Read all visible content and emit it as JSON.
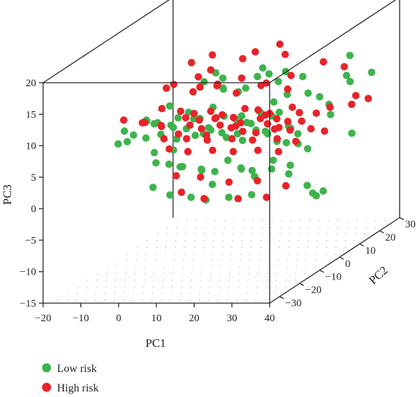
{
  "chart_data": {
    "type": "scatter",
    "projection": "3d",
    "xlabel": "PC1",
    "ylabel": "PC2",
    "zlabel": "PC3",
    "xlim": [
      -20,
      40
    ],
    "ylim": [
      -35,
      30
    ],
    "zlim": [
      -15,
      20
    ],
    "xticks": [
      "−20",
      "−10",
      "0",
      "10",
      "20",
      "30",
      "40"
    ],
    "yticks": [
      "−30",
      "−20",
      "−10",
      "0",
      "10",
      "20",
      "30"
    ],
    "zticks": [
      "−15",
      "−10",
      "−5",
      "0",
      "5",
      "10",
      "15",
      "20"
    ],
    "floor_grid": true,
    "legend_position": "bottom-left",
    "series": [
      {
        "name": "Low risk",
        "color": "#3cb44b",
        "points": [
          [
            27,
            28,
            8
          ],
          [
            30,
            24,
            12
          ],
          [
            40,
            16,
            11
          ],
          [
            39,
            8,
            3
          ],
          [
            -17,
            0,
            5
          ],
          [
            -16,
            -5,
            4
          ],
          [
            -13,
            -3,
            5
          ],
          [
            -12,
            -8,
            5
          ],
          [
            -10,
            -2,
            7
          ],
          [
            -8,
            -6,
            8
          ],
          [
            -7,
            -4,
            7
          ],
          [
            -6,
            -10,
            6
          ],
          [
            -5,
            0,
            9
          ],
          [
            -4,
            -8,
            8
          ],
          [
            -3,
            -2,
            6
          ],
          [
            -2,
            -5,
            7
          ],
          [
            -1,
            -12,
            7
          ],
          [
            0,
            0,
            8
          ],
          [
            0,
            -6,
            5
          ],
          [
            1,
            -3,
            6
          ],
          [
            2,
            -9,
            9
          ],
          [
            3,
            0,
            7
          ],
          [
            4,
            -5,
            8
          ],
          [
            5,
            -2,
            5
          ],
          [
            6,
            -8,
            6
          ],
          [
            7,
            -1,
            9
          ],
          [
            8,
            -4,
            6
          ],
          [
            9,
            -7,
            7
          ],
          [
            10,
            0,
            4
          ],
          [
            11,
            -3,
            8
          ],
          [
            12,
            -6,
            6
          ],
          [
            13,
            2,
            7
          ],
          [
            14,
            -2,
            5
          ],
          [
            15,
            -5,
            8
          ],
          [
            16,
            1,
            6
          ],
          [
            17,
            -3,
            7
          ],
          [
            18,
            -7,
            5
          ],
          [
            19,
            0,
            8
          ],
          [
            20,
            -4,
            6
          ],
          [
            21,
            2,
            7
          ],
          [
            22,
            -2,
            5
          ],
          [
            23,
            -5,
            6
          ],
          [
            24,
            0,
            8
          ],
          [
            25,
            -3,
            4
          ],
          [
            26,
            2,
            5
          ],
          [
            27,
            -1,
            6
          ],
          [
            28,
            -4,
            4
          ],
          [
            29,
            0,
            3
          ],
          [
            30,
            -2,
            5
          ],
          [
            31,
            1,
            2
          ],
          [
            -8,
            -2,
            2
          ],
          [
            -6,
            -5,
            1
          ],
          [
            -4,
            0,
            2
          ],
          [
            -2,
            -6,
            1
          ],
          [
            0,
            -3,
            0
          ],
          [
            2,
            -8,
            1
          ],
          [
            4,
            -1,
            -1
          ],
          [
            6,
            -5,
            0
          ],
          [
            8,
            -2,
            -1
          ],
          [
            10,
            -7,
            -2
          ],
          [
            12,
            -3,
            1
          ],
          [
            14,
            0,
            -1
          ],
          [
            16,
            -4,
            0
          ],
          [
            18,
            -1,
            -2
          ],
          [
            20,
            -6,
            0
          ],
          [
            22,
            0,
            -1
          ],
          [
            24,
            -3,
            1
          ],
          [
            26,
            1,
            -2
          ],
          [
            28,
            -2,
            0
          ],
          [
            33,
            -3,
            -3
          ],
          [
            -2,
            -14,
            -1
          ],
          [
            3,
            -15,
            -2
          ],
          [
            7,
            -12,
            -3
          ],
          [
            12,
            -14,
            -3
          ],
          [
            17,
            -12,
            -3
          ],
          [
            22,
            -10,
            -3
          ],
          [
            35,
            -4,
            -4
          ],
          [
            37,
            -6,
            -4
          ],
          [
            42,
            -12,
            -2
          ],
          [
            4,
            6,
            13
          ],
          [
            7,
            4,
            11
          ],
          [
            10,
            6,
            10
          ],
          [
            14,
            8,
            12
          ],
          [
            17,
            5,
            14
          ],
          [
            19,
            9,
            11
          ],
          [
            22,
            7,
            13
          ],
          [
            24,
            4,
            10
          ],
          [
            26,
            8,
            12
          ],
          [
            29,
            5,
            10
          ],
          [
            31,
            7,
            9
          ],
          [
            34,
            6,
            8
          ],
          [
            36,
            3,
            7
          ],
          [
            38,
            9,
            11
          ],
          [
            2,
            4,
            12
          ],
          [
            5,
            8,
            10
          ],
          [
            8,
            2,
            13
          ],
          [
            13,
            4,
            11
          ],
          [
            16,
            10,
            12
          ],
          [
            21,
            3,
            9
          ]
        ]
      },
      {
        "name": "High risk",
        "color": "#e8232a",
        "points": [
          [
            30,
            27,
            5
          ],
          [
            19,
            28,
            2
          ],
          [
            37,
            20,
            6
          ],
          [
            40,
            6,
            8
          ],
          [
            38,
            -1,
            9
          ],
          [
            28,
            25,
            10
          ],
          [
            23,
            24,
            11
          ],
          [
            12,
            23,
            14
          ],
          [
            6,
            22,
            13
          ],
          [
            15,
            20,
            13
          ],
          [
            -14,
            -6,
            8
          ],
          [
            -10,
            -3,
            7
          ],
          [
            -8,
            -8,
            8
          ],
          [
            -6,
            -2,
            9
          ],
          [
            -4,
            -6,
            7
          ],
          [
            -2,
            -10,
            8
          ],
          [
            0,
            -4,
            9
          ],
          [
            1,
            -7,
            6
          ],
          [
            2,
            -1,
            8
          ],
          [
            3,
            -5,
            7
          ],
          [
            4,
            -9,
            9
          ],
          [
            5,
            -3,
            6
          ],
          [
            6,
            -6,
            8
          ],
          [
            7,
            0,
            7
          ],
          [
            8,
            -4,
            9
          ],
          [
            9,
            -8,
            6
          ],
          [
            10,
            -2,
            8
          ],
          [
            11,
            -5,
            7
          ],
          [
            12,
            -9,
            9
          ],
          [
            13,
            -1,
            6
          ],
          [
            14,
            -4,
            8
          ],
          [
            15,
            -7,
            7
          ],
          [
            16,
            -2,
            9
          ],
          [
            17,
            -5,
            6
          ],
          [
            18,
            -8,
            8
          ],
          [
            19,
            0,
            7
          ],
          [
            20,
            -3,
            9
          ],
          [
            21,
            -6,
            6
          ],
          [
            22,
            -1,
            8
          ],
          [
            23,
            -4,
            7
          ],
          [
            24,
            -7,
            9
          ],
          [
            25,
            -2,
            6
          ],
          [
            26,
            -5,
            8
          ],
          [
            27,
            -8,
            7
          ],
          [
            28,
            -1,
            9
          ],
          [
            29,
            -4,
            6
          ],
          [
            30,
            -7,
            8
          ],
          [
            31,
            -2,
            7
          ],
          [
            32,
            -5,
            9
          ],
          [
            34,
            -3,
            6
          ],
          [
            -8,
            4,
            11
          ],
          [
            -5,
            2,
            12
          ],
          [
            -2,
            6,
            10
          ],
          [
            1,
            3,
            13
          ],
          [
            4,
            7,
            11
          ],
          [
            7,
            1,
            12
          ],
          [
            10,
            5,
            10
          ],
          [
            13,
            2,
            13
          ],
          [
            16,
            6,
            11
          ],
          [
            19,
            3,
            12
          ],
          [
            22,
            8,
            10
          ],
          [
            25,
            4,
            13
          ],
          [
            -6,
            -1,
            4
          ],
          [
            -3,
            -4,
            3
          ],
          [
            0,
            -1,
            4
          ],
          [
            3,
            -6,
            3
          ],
          [
            6,
            -2,
            4
          ],
          [
            9,
            -5,
            3
          ],
          [
            12,
            -1,
            4
          ],
          [
            15,
            -6,
            3
          ],
          [
            18,
            -2,
            4
          ],
          [
            21,
            -5,
            3
          ],
          [
            24,
            -1,
            4
          ],
          [
            27,
            -6,
            3
          ],
          [
            30,
            -3,
            4
          ],
          [
            2,
            -10,
            0
          ],
          [
            9,
            -11,
            0
          ],
          [
            16,
            -10,
            -1
          ],
          [
            23,
            -9,
            -1
          ],
          [
            30,
            -8,
            -2
          ],
          [
            5,
            -13,
            -2
          ],
          [
            11,
            -13,
            -3
          ],
          [
            20,
            -13,
            -3
          ],
          [
            27,
            -12,
            -3
          ],
          [
            -4,
            9,
            14
          ],
          [
            1,
            10,
            15
          ],
          [
            8,
            12,
            14
          ],
          [
            -1,
            13,
            12
          ],
          [
            3,
            0,
            12
          ],
          [
            36,
            0,
            5
          ]
        ]
      }
    ]
  }
}
